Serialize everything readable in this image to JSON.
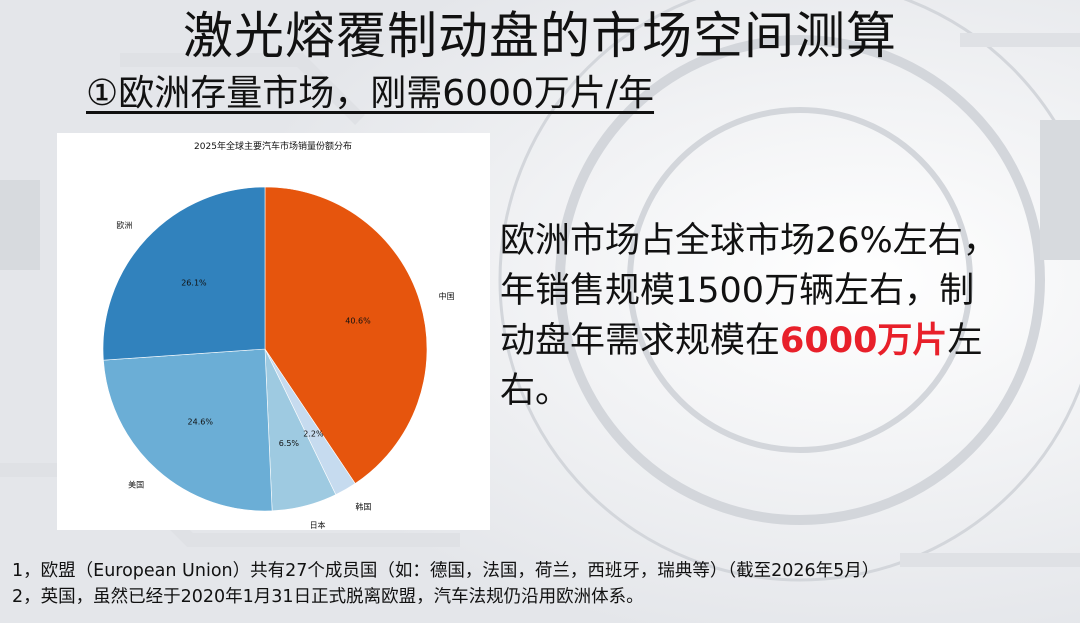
{
  "slide": {
    "title": "激光熔覆制动盘的市场空间测算",
    "subtitle": "①欧洲存量市场，刚需6000万片/年"
  },
  "description": {
    "line1": "欧洲市场占全球市场26%左右，",
    "line2": "年销售规模1500万辆左右，制",
    "line3_a": "动盘年需求规模在",
    "line3_highlight": "6000万片",
    "line3_b": "左",
    "line4": "右。",
    "highlight_color": "#e8202a"
  },
  "notes": [
    "1，欧盟（European Union）共有27个成员国（如：德国，法国，荷兰，西班牙，瑞典等）（截至2026年5月）",
    "2，英国，虽然已经于2020年1月31日正式脱离欧盟，汽车法规仍沿用欧洲体系。"
  ],
  "chart_data": {
    "type": "pie",
    "title": "2025年全球主要汽车市场销量份额分布",
    "start_angle": "12 o'clock, clockwise",
    "slices": [
      {
        "label": "中国",
        "value": 40.6,
        "value_label": "40.6%",
        "color": "#e6550d"
      },
      {
        "label": "韩国",
        "value": 2.2,
        "value_label": "2.2%",
        "color": "#c6dbef"
      },
      {
        "label": "日本",
        "value": 6.5,
        "value_label": "6.5%",
        "color": "#9ecae1"
      },
      {
        "label": "美国",
        "value": 24.6,
        "value_label": "24.6%",
        "color": "#6baed6"
      },
      {
        "label": "欧洲",
        "value": 26.1,
        "value_label": "26.1%",
        "color": "#3182bd"
      }
    ]
  }
}
